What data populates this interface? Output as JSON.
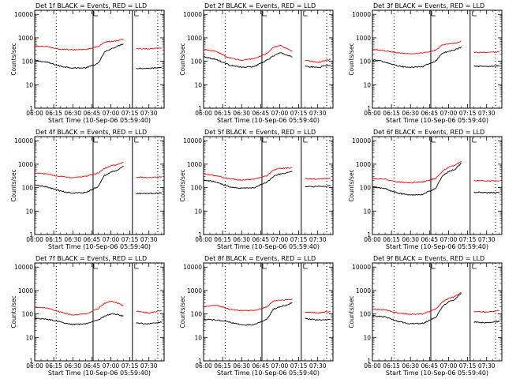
{
  "common": {
    "x_tick_labels": [
      "06:00",
      "06:15",
      "06:30",
      "06:45",
      "07:00",
      "07:15",
      "07:30"
    ],
    "x_label": "Start Time (10-Sep-06 05:59:40)",
    "y_label": "Counts/sec",
    "y_tick_labels": [
      "1",
      "10",
      "100",
      "1000",
      "10000"
    ],
    "colors": {
      "events": "#000000",
      "lld": "#ff0000",
      "axes": "#000000",
      "background": "#ffffff"
    }
  },
  "chart_data": [
    {
      "type": "line",
      "title": "Det 1f  BLACK = Events, RED = LLD",
      "xlabel": "Start Time (10-Sep-06 05:59:40)",
      "ylabel": "Counts/sec",
      "x_range": [
        "06:00",
        "07:42"
      ],
      "y_range": [
        1,
        15000
      ],
      "y_scale": "log",
      "grid": false,
      "x": [
        "06:00",
        "06:10",
        "06:20",
        "06:30",
        "06:40",
        "06:50",
        "06:55",
        "07:00",
        "07:05",
        "07:10",
        "07:15",
        "07:20",
        "07:30",
        "07:40"
      ],
      "series": [
        {
          "name": "Events",
          "color": "#000000",
          "values": [
            110,
            90,
            62,
            52,
            52,
            80,
            240,
            340,
            430,
            570,
            null,
            50,
            50,
            55
          ]
        },
        {
          "name": "LLD",
          "color": "#ff0000",
          "values": [
            450,
            420,
            330,
            310,
            320,
            420,
            650,
            700,
            750,
            880,
            null,
            350,
            340,
            370
          ]
        }
      ]
    },
    {
      "type": "line",
      "title": "Det 2f  BLACK = Events, RED = LLD",
      "xlabel": "Start Time (10-Sep-06 05:59:40)",
      "ylabel": "Counts/sec",
      "x_range": [
        "06:00",
        "07:42"
      ],
      "y_range": [
        1,
        15000
      ],
      "y_scale": "log",
      "grid": false,
      "x": [
        "06:00",
        "06:10",
        "06:20",
        "06:30",
        "06:40",
        "06:50",
        "06:55",
        "07:00",
        "07:05",
        "07:10",
        "07:15",
        "07:20",
        "07:30",
        "07:40"
      ],
      "series": [
        {
          "name": "Events",
          "color": "#000000",
          "values": [
            160,
            120,
            70,
            55,
            60,
            110,
            170,
            230,
            190,
            160,
            null,
            60,
            55,
            70
          ]
        },
        {
          "name": "LLD",
          "color": "#ff0000",
          "values": [
            320,
            260,
            140,
            110,
            130,
            220,
            380,
            480,
            360,
            260,
            null,
            110,
            90,
            120
          ]
        }
      ]
    },
    {
      "type": "line",
      "title": "Det 3f  BLACK = Events, RED = LLD",
      "xlabel": "Start Time (10-Sep-06 05:59:40)",
      "ylabel": "Counts/sec",
      "x_range": [
        "06:00",
        "07:42"
      ],
      "y_range": [
        1,
        15000
      ],
      "y_scale": "log",
      "grid": false,
      "x": [
        "06:00",
        "06:10",
        "06:20",
        "06:30",
        "06:40",
        "06:50",
        "06:55",
        "07:00",
        "07:05",
        "07:10",
        "07:15",
        "07:20",
        "07:30",
        "07:40"
      ],
      "series": [
        {
          "name": "Events",
          "color": "#000000",
          "values": [
            115,
            95,
            62,
            55,
            60,
            105,
            220,
            260,
            310,
            400,
            null,
            62,
            60,
            65
          ]
        },
        {
          "name": "LLD",
          "color": "#ff0000",
          "values": [
            330,
            280,
            230,
            210,
            230,
            300,
            500,
            550,
            600,
            700,
            null,
            240,
            240,
            250
          ]
        }
      ]
    },
    {
      "type": "line",
      "title": "Det 4f  BLACK = Events, RED = LLD",
      "xlabel": "Start Time (10-Sep-06 05:59:40)",
      "ylabel": "Counts/sec",
      "x_range": [
        "06:00",
        "07:42"
      ],
      "y_range": [
        1,
        15000
      ],
      "y_scale": "log",
      "grid": false,
      "x": [
        "06:00",
        "06:10",
        "06:20",
        "06:30",
        "06:40",
        "06:50",
        "06:55",
        "07:00",
        "07:05",
        "07:10",
        "07:15",
        "07:20",
        "07:30",
        "07:40"
      ],
      "series": [
        {
          "name": "Events",
          "color": "#000000",
          "values": [
            130,
            105,
            72,
            58,
            62,
            110,
            330,
            450,
            550,
            800,
            null,
            55,
            55,
            60
          ]
        },
        {
          "name": "LLD",
          "color": "#ff0000",
          "values": [
            420,
            380,
            300,
            270,
            300,
            420,
            650,
            850,
            950,
            1200,
            null,
            280,
            270,
            290
          ]
        }
      ]
    },
    {
      "type": "line",
      "title": "Det 5f  BLACK = Events, RED = LLD",
      "xlabel": "Start Time (10-Sep-06 05:59:40)",
      "ylabel": "Counts/sec",
      "x_range": [
        "06:00",
        "07:42"
      ],
      "y_range": [
        1,
        15000
      ],
      "y_scale": "log",
      "grid": false,
      "x": [
        "06:00",
        "06:10",
        "06:20",
        "06:30",
        "06:40",
        "06:50",
        "06:55",
        "07:00",
        "07:05",
        "07:10",
        "07:15",
        "07:20",
        "07:30",
        "07:40"
      ],
      "series": [
        {
          "name": "Events",
          "color": "#000000",
          "values": [
            220,
            170,
            110,
            95,
            100,
            170,
            300,
            380,
            420,
            480,
            null,
            110,
            110,
            120
          ]
        },
        {
          "name": "LLD",
          "color": "#ff0000",
          "values": [
            380,
            320,
            240,
            210,
            230,
            330,
            560,
            650,
            680,
            700,
            null,
            240,
            230,
            250
          ]
        }
      ]
    },
    {
      "type": "line",
      "title": "Det 6f  BLACK = Events, RED = LLD",
      "xlabel": "Start Time (10-Sep-06 05:59:40)",
      "ylabel": "Counts/sec",
      "x_range": [
        "06:00",
        "07:42"
      ],
      "y_range": [
        1,
        15000
      ],
      "y_scale": "log",
      "grid": false,
      "x": [
        "06:00",
        "06:10",
        "06:20",
        "06:30",
        "06:40",
        "06:50",
        "06:55",
        "07:00",
        "07:05",
        "07:10",
        "07:15",
        "07:20",
        "07:30",
        "07:40"
      ],
      "series": [
        {
          "name": "Events",
          "color": "#000000",
          "values": [
            110,
            90,
            58,
            48,
            52,
            95,
            300,
            480,
            600,
            1100,
            null,
            65,
            60,
            62
          ]
        },
        {
          "name": "LLD",
          "color": "#ff0000",
          "values": [
            250,
            230,
            175,
            160,
            175,
            250,
            480,
            750,
            900,
            1300,
            null,
            200,
            190,
            195
          ]
        }
      ]
    },
    {
      "type": "line",
      "title": "Det 7f  BLACK = Events, RED = LLD",
      "xlabel": "Start Time (10-Sep-06 05:59:40)",
      "ylabel": "Counts/sec",
      "x_range": [
        "06:00",
        "07:42"
      ],
      "y_range": [
        1,
        15000
      ],
      "y_scale": "log",
      "grid": false,
      "x": [
        "06:00",
        "06:10",
        "06:20",
        "06:30",
        "06:40",
        "06:50",
        "06:55",
        "07:00",
        "07:05",
        "07:10",
        "07:15",
        "07:20",
        "07:30",
        "07:40"
      ],
      "series": [
        {
          "name": "Events",
          "color": "#000000",
          "values": [
            65,
            60,
            45,
            36,
            38,
            55,
            80,
            100,
            95,
            80,
            null,
            40,
            38,
            45
          ]
        },
        {
          "name": "LLD",
          "color": "#ff0000",
          "values": [
            190,
            180,
            120,
            90,
            100,
            170,
            280,
            350,
            300,
            220,
            null,
            130,
            110,
            140
          ]
        }
      ]
    },
    {
      "type": "line",
      "title": "Det 8f  BLACK = Events, RED = LLD",
      "xlabel": "Start Time (10-Sep-06 05:59:40)",
      "ylabel": "Counts/sec",
      "x_range": [
        "06:00",
        "07:42"
      ],
      "y_range": [
        1,
        15000
      ],
      "y_scale": "log",
      "grid": false,
      "x": [
        "06:00",
        "06:10",
        "06:20",
        "06:30",
        "06:40",
        "06:50",
        "06:55",
        "07:00",
        "07:05",
        "07:10",
        "07:15",
        "07:20",
        "07:30",
        "07:40"
      ],
      "series": [
        {
          "name": "Events",
          "color": "#000000",
          "values": [
            60,
            55,
            45,
            34,
            35,
            60,
            160,
            200,
            240,
            300,
            null,
            65,
            55,
            60
          ]
        },
        {
          "name": "LLD",
          "color": "#ff0000",
          "values": [
            200,
            240,
            160,
            140,
            140,
            200,
            360,
            380,
            400,
            420,
            null,
            120,
            110,
            130
          ]
        }
      ]
    },
    {
      "type": "line",
      "title": "Det 9f  BLACK = Events, RED = LLD",
      "xlabel": "Start Time (10-Sep-06 05:59:40)",
      "ylabel": "Counts/sec",
      "x_range": [
        "06:00",
        "07:42"
      ],
      "y_range": [
        1,
        15000
      ],
      "y_scale": "log",
      "grid": false,
      "x": [
        "06:00",
        "06:10",
        "06:20",
        "06:30",
        "06:40",
        "06:50",
        "06:55",
        "07:00",
        "07:05",
        "07:10",
        "07:15",
        "07:20",
        "07:30",
        "07:40"
      ],
      "series": [
        {
          "name": "Events",
          "color": "#000000",
          "values": [
            85,
            75,
            48,
            38,
            40,
            70,
            200,
            330,
            420,
            750,
            null,
            45,
            42,
            48
          ]
        },
        {
          "name": "LLD",
          "color": "#ff0000",
          "values": [
            160,
            150,
            110,
            95,
            100,
            160,
            320,
            450,
            550,
            850,
            null,
            130,
            120,
            140
          ]
        }
      ]
    }
  ]
}
